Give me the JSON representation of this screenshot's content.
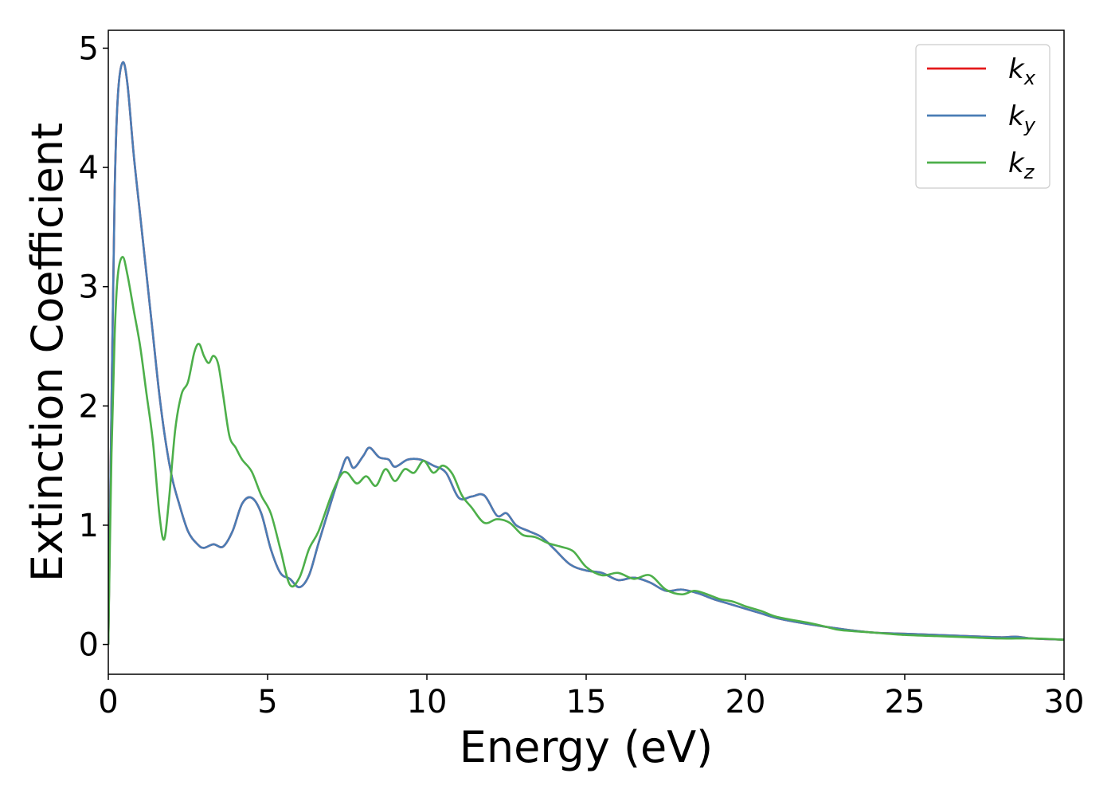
{
  "chart_data": {
    "type": "line",
    "title": "",
    "xlabel": "Energy (eV)",
    "ylabel": "Extinction Coefficient",
    "xlim": [
      0,
      30
    ],
    "ylim": [
      -0.25,
      5.15
    ],
    "xticks": [
      0,
      5,
      10,
      15,
      20,
      25,
      30
    ],
    "yticks": [
      0,
      1,
      2,
      3,
      4,
      5
    ],
    "grid": false,
    "legend_position": "top-right",
    "series": [
      {
        "name": "k_x",
        "label_base": "k",
        "label_sub": "x",
        "color": "#e41a1c",
        "x": [
          0,
          0.1,
          0.2,
          0.3,
          0.45,
          0.6,
          0.8,
          1.0,
          1.2,
          1.4,
          1.6,
          1.8,
          2.0,
          2.2,
          2.5,
          2.8,
          3.0,
          3.3,
          3.6,
          3.9,
          4.2,
          4.5,
          4.8,
          5.1,
          5.4,
          5.7,
          6.0,
          6.3,
          6.6,
          7.0,
          7.3,
          7.5,
          7.7,
          8.0,
          8.2,
          8.5,
          8.8,
          9.0,
          9.4,
          9.8,
          10.2,
          10.6,
          11.0,
          11.4,
          11.8,
          12.2,
          12.5,
          12.8,
          13.2,
          13.6,
          14.0,
          14.5,
          15.0,
          15.5,
          16.0,
          16.5,
          17.0,
          17.5,
          18.0,
          18.5,
          19.0,
          19.5,
          20.0,
          20.5,
          21.0,
          22.0,
          23.0,
          24.0,
          25.0,
          26.0,
          27.0,
          28.0,
          28.5,
          29.0,
          30.0
        ],
        "y": [
          0,
          2.0,
          3.8,
          4.6,
          4.88,
          4.7,
          4.1,
          3.6,
          3.1,
          2.6,
          2.1,
          1.7,
          1.4,
          1.2,
          0.95,
          0.84,
          0.81,
          0.84,
          0.82,
          0.95,
          1.18,
          1.23,
          1.1,
          0.8,
          0.6,
          0.55,
          0.48,
          0.58,
          0.85,
          1.2,
          1.45,
          1.57,
          1.48,
          1.58,
          1.65,
          1.57,
          1.55,
          1.49,
          1.55,
          1.55,
          1.5,
          1.44,
          1.23,
          1.24,
          1.25,
          1.08,
          1.1,
          1.0,
          0.95,
          0.9,
          0.8,
          0.67,
          0.62,
          0.6,
          0.54,
          0.56,
          0.52,
          0.45,
          0.46,
          0.43,
          0.38,
          0.34,
          0.3,
          0.26,
          0.22,
          0.17,
          0.13,
          0.1,
          0.09,
          0.08,
          0.07,
          0.06,
          0.065,
          0.05,
          0.04
        ]
      },
      {
        "name": "k_y",
        "label_base": "k",
        "label_sub": "y",
        "color": "#4a7db5",
        "x": [
          0,
          0.1,
          0.2,
          0.3,
          0.45,
          0.6,
          0.8,
          1.0,
          1.2,
          1.4,
          1.6,
          1.8,
          2.0,
          2.2,
          2.5,
          2.8,
          3.0,
          3.3,
          3.6,
          3.9,
          4.2,
          4.5,
          4.8,
          5.1,
          5.4,
          5.7,
          6.0,
          6.3,
          6.6,
          7.0,
          7.3,
          7.5,
          7.7,
          8.0,
          8.2,
          8.5,
          8.8,
          9.0,
          9.4,
          9.8,
          10.2,
          10.6,
          11.0,
          11.4,
          11.8,
          12.2,
          12.5,
          12.8,
          13.2,
          13.6,
          14.0,
          14.5,
          15.0,
          15.5,
          16.0,
          16.5,
          17.0,
          17.5,
          18.0,
          18.5,
          19.0,
          19.5,
          20.0,
          20.5,
          21.0,
          22.0,
          23.0,
          24.0,
          25.0,
          26.0,
          27.0,
          28.0,
          28.5,
          29.0,
          30.0
        ],
        "y": [
          0,
          2.0,
          3.8,
          4.6,
          4.88,
          4.7,
          4.1,
          3.6,
          3.1,
          2.6,
          2.1,
          1.7,
          1.4,
          1.2,
          0.95,
          0.84,
          0.81,
          0.84,
          0.82,
          0.95,
          1.18,
          1.23,
          1.1,
          0.8,
          0.6,
          0.55,
          0.48,
          0.58,
          0.85,
          1.2,
          1.45,
          1.57,
          1.48,
          1.58,
          1.65,
          1.57,
          1.55,
          1.49,
          1.55,
          1.55,
          1.5,
          1.44,
          1.23,
          1.24,
          1.25,
          1.08,
          1.1,
          1.0,
          0.95,
          0.9,
          0.8,
          0.67,
          0.62,
          0.6,
          0.54,
          0.56,
          0.52,
          0.45,
          0.46,
          0.43,
          0.38,
          0.34,
          0.3,
          0.26,
          0.22,
          0.17,
          0.13,
          0.1,
          0.09,
          0.08,
          0.07,
          0.06,
          0.065,
          0.05,
          0.04
        ]
      },
      {
        "name": "k_z",
        "label_base": "k",
        "label_sub": "z",
        "color": "#4daf4a",
        "x": [
          0,
          0.1,
          0.2,
          0.3,
          0.45,
          0.6,
          0.8,
          1.0,
          1.2,
          1.4,
          1.6,
          1.75,
          1.9,
          2.1,
          2.3,
          2.5,
          2.7,
          2.85,
          3.0,
          3.15,
          3.3,
          3.45,
          3.6,
          3.8,
          4.0,
          4.2,
          4.5,
          4.8,
          5.1,
          5.4,
          5.7,
          6.0,
          6.3,
          6.6,
          7.0,
          7.3,
          7.5,
          7.8,
          8.1,
          8.4,
          8.7,
          9.0,
          9.3,
          9.6,
          9.9,
          10.2,
          10.5,
          10.8,
          11.1,
          11.4,
          11.8,
          12.2,
          12.6,
          13.0,
          13.4,
          13.8,
          14.2,
          14.6,
          15.0,
          15.5,
          16.0,
          16.5,
          17.0,
          17.5,
          18.0,
          18.4,
          18.8,
          19.2,
          19.6,
          20.0,
          20.5,
          21.0,
          22.0,
          22.5,
          23.0,
          24.0,
          25.0,
          26.0,
          27.0,
          28.0,
          29.0,
          30.0
        ],
        "y": [
          0,
          1.6,
          2.6,
          3.1,
          3.25,
          3.1,
          2.8,
          2.5,
          2.1,
          1.7,
          1.1,
          0.88,
          1.2,
          1.8,
          2.1,
          2.2,
          2.45,
          2.52,
          2.42,
          2.36,
          2.42,
          2.35,
          2.1,
          1.75,
          1.65,
          1.55,
          1.45,
          1.25,
          1.1,
          0.8,
          0.5,
          0.56,
          0.8,
          0.95,
          1.25,
          1.42,
          1.44,
          1.35,
          1.41,
          1.33,
          1.47,
          1.37,
          1.47,
          1.44,
          1.54,
          1.44,
          1.5,
          1.43,
          1.25,
          1.15,
          1.02,
          1.05,
          1.02,
          0.92,
          0.9,
          0.85,
          0.82,
          0.78,
          0.65,
          0.58,
          0.6,
          0.55,
          0.58,
          0.46,
          0.42,
          0.45,
          0.42,
          0.38,
          0.36,
          0.32,
          0.28,
          0.23,
          0.18,
          0.15,
          0.12,
          0.1,
          0.08,
          0.07,
          0.06,
          0.05,
          0.05,
          0.04
        ]
      }
    ]
  }
}
